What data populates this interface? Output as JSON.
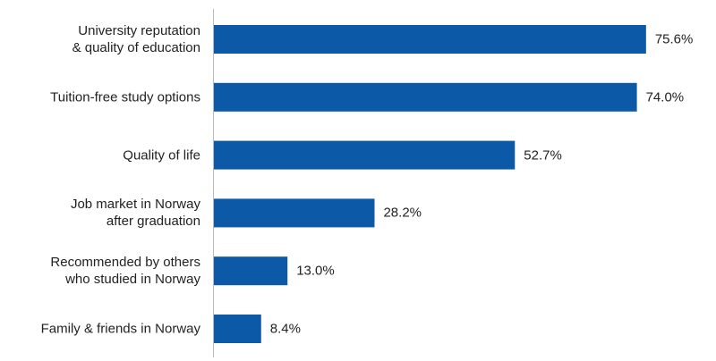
{
  "chart_data": {
    "type": "bar",
    "orientation": "horizontal",
    "categories": [
      "University reputation\n& quality of education",
      "Tuition-free study options",
      "Quality of life",
      "Job market in Norway\nafter graduation",
      "Recommended by others\nwho studied in Norway",
      "Family & friends in Norway"
    ],
    "values": [
      75.6,
      74.0,
      52.7,
      28.2,
      13.0,
      8.4
    ],
    "value_labels": [
      "75.6%",
      "74.0%",
      "52.7%",
      "28.2%",
      "13.0%",
      "8.4%"
    ],
    "color": "#0b59a7"
  }
}
